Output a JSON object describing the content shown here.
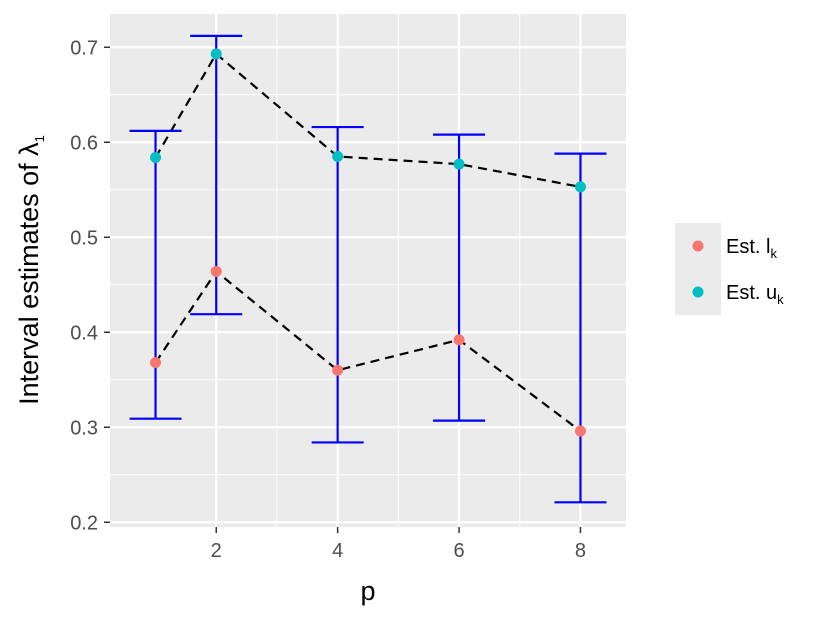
{
  "chart_data": {
    "type": "scatter",
    "x": [
      1,
      2,
      4,
      6,
      8
    ],
    "series": [
      {
        "name": "Est. l",
        "name_subscript": "k",
        "color": "#F8766D",
        "values": [
          0.368,
          0.464,
          0.36,
          0.392,
          0.296
        ]
      },
      {
        "name": "Est. u",
        "name_subscript": "k",
        "color": "#00BFC4",
        "values": [
          0.584,
          0.693,
          0.585,
          0.577,
          0.553
        ]
      }
    ],
    "error_bars": {
      "color": "#0000FF",
      "lower": [
        0.309,
        0.419,
        0.284,
        0.307,
        0.221
      ],
      "upper": [
        0.612,
        0.712,
        0.616,
        0.608,
        0.588
      ]
    },
    "connector_line_style": "dashed",
    "xlabel": "p",
    "ylabel": "Interval estimates of ",
    "ylabel_symbol": "λ",
    "ylabel_subscript": "1",
    "x_ticks": [
      2,
      4,
      6,
      8
    ],
    "y_ticks": [
      0.2,
      0.3,
      0.4,
      0.5,
      0.6,
      0.7
    ],
    "y_tick_labels": [
      "0.2",
      "0.3",
      "0.4",
      "0.5",
      "0.6",
      "0.7"
    ],
    "xlim": [
      0.25,
      8.75
    ],
    "ylim": [
      0.195,
      0.735
    ],
    "grid": true,
    "legend_position": "right"
  }
}
